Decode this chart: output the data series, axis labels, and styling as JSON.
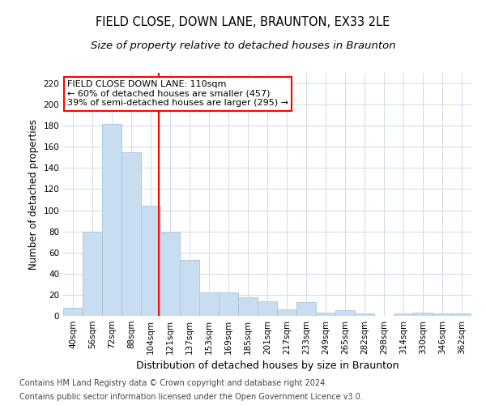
{
  "title": "FIELD CLOSE, DOWN LANE, BRAUNTON, EX33 2LE",
  "subtitle": "Size of property relative to detached houses in Braunton",
  "xlabel": "Distribution of detached houses by size in Braunton",
  "ylabel": "Number of detached properties",
  "categories": [
    "40sqm",
    "56sqm",
    "72sqm",
    "88sqm",
    "104sqm",
    "121sqm",
    "137sqm",
    "153sqm",
    "169sqm",
    "185sqm",
    "201sqm",
    "217sqm",
    "233sqm",
    "249sqm",
    "265sqm",
    "282sqm",
    "298sqm",
    "314sqm",
    "330sqm",
    "346sqm",
    "362sqm"
  ],
  "values": [
    8,
    80,
    182,
    155,
    104,
    79,
    53,
    22,
    22,
    18,
    14,
    6,
    13,
    3,
    5,
    2,
    0,
    2,
    3,
    2,
    2
  ],
  "bar_color": "#c9ddf0",
  "bar_edge_color": "#a8c4e0",
  "vline_x_index": 4.43,
  "annotation_line1": "FIELD CLOSE DOWN LANE: 110sqm",
  "annotation_line2": "← 60% of detached houses are smaller (457)",
  "annotation_line3": "39% of semi-detached houses are larger (295) →",
  "annotation_box_color": "white",
  "annotation_box_edge_color": "red",
  "vline_color": "red",
  "ylim": [
    0,
    230
  ],
  "yticks": [
    0,
    20,
    40,
    60,
    80,
    100,
    120,
    140,
    160,
    180,
    200,
    220
  ],
  "footer_line1": "Contains HM Land Registry data © Crown copyright and database right 2024.",
  "footer_line2": "Contains public sector information licensed under the Open Government Licence v3.0.",
  "background_color": "#ffffff",
  "grid_color": "#c8d4e8",
  "title_fontsize": 10.5,
  "subtitle_fontsize": 9.5,
  "xlabel_fontsize": 9,
  "ylabel_fontsize": 8.5,
  "tick_fontsize": 7.5,
  "annotation_fontsize": 8,
  "footer_fontsize": 7
}
